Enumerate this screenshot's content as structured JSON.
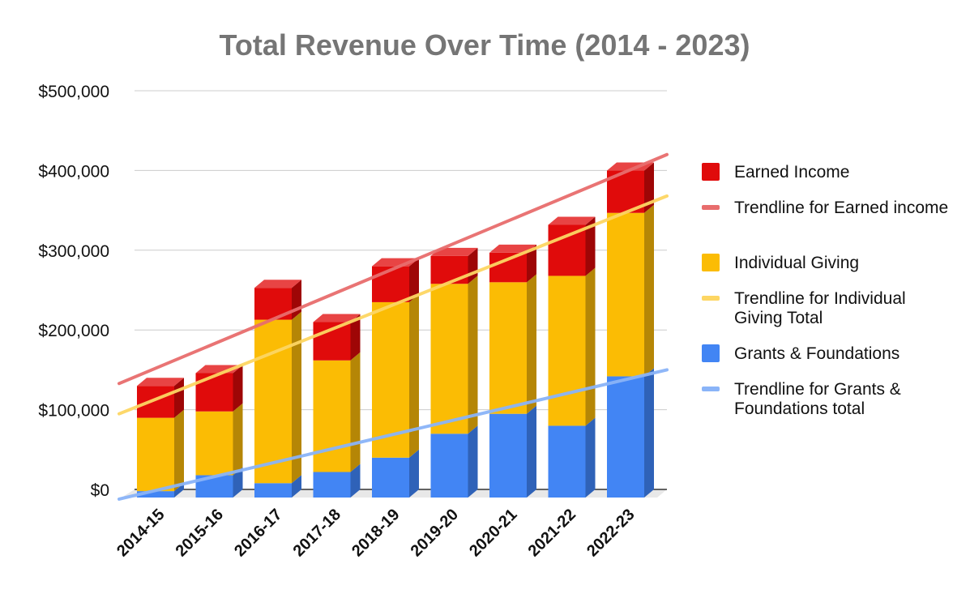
{
  "chart_data": {
    "type": "bar",
    "stacked": true,
    "style": "3d",
    "title": "Total Revenue Over Time (2014 - 2023)",
    "xlabel": "",
    "ylabel": "",
    "ylim": [
      0,
      500000
    ],
    "y_ticks": [
      0,
      100000,
      200000,
      300000,
      400000,
      500000
    ],
    "y_tick_labels": [
      "$0",
      "$100,000",
      "$200,000",
      "$300,000",
      "$400,000",
      "$500,000"
    ],
    "grid": true,
    "legend_position": "right",
    "categories": [
      "2014-15",
      "2015-16",
      "2016-17",
      "2017-18",
      "2018-19",
      "2019-20",
      "2020-21",
      "2021-22",
      "2022-23"
    ],
    "series": [
      {
        "name": "Grants & Foundations",
        "color": "#4285f4",
        "side_color": "#2f62b8",
        "top_color": "#6a9cf5",
        "values": [
          8000,
          28000,
          18000,
          32000,
          50000,
          80000,
          105000,
          90000,
          152000
        ]
      },
      {
        "name": "Individual Giving",
        "color": "#fbbc04",
        "side_color": "#b58606",
        "top_color": "#fcd04f",
        "values": [
          92000,
          80000,
          205000,
          140000,
          195000,
          188000,
          165000,
          188000,
          205000
        ]
      },
      {
        "name": "Earned Income",
        "color": "#e00b0b",
        "side_color": "#9e0606",
        "top_color": "#e84444",
        "values": [
          40000,
          48000,
          40000,
          48000,
          45000,
          35000,
          37000,
          64000,
          53000
        ]
      }
    ],
    "trendlines": [
      {
        "name": "Trendline for Earned income",
        "color": "#e86d6d",
        "start": 143000,
        "end": 420000
      },
      {
        "name": "Trendline for Individual Giving Total",
        "color": "#fdd663",
        "start": 105000,
        "end": 368000
      },
      {
        "name": "Trendline for Grants & Foundations total",
        "color": "#8ab4f8",
        "start": -2000,
        "end": 150000
      }
    ],
    "legend": [
      {
        "label": "Earned Income",
        "kind": "box",
        "color": "#e00b0b"
      },
      {
        "label": "Trendline for Earned income",
        "kind": "line",
        "color": "#e86d6d"
      },
      {
        "label": "Individual Giving",
        "kind": "box",
        "color": "#fbbc04"
      },
      {
        "label": "Trendline for Individual Giving Total",
        "kind": "line",
        "color": "#fdd663"
      },
      {
        "label": "Grants & Foundations",
        "kind": "box",
        "color": "#4285f4"
      },
      {
        "label": "Trendline for Grants & Foundations total",
        "kind": "line",
        "color": "#8ab4f8"
      }
    ]
  }
}
